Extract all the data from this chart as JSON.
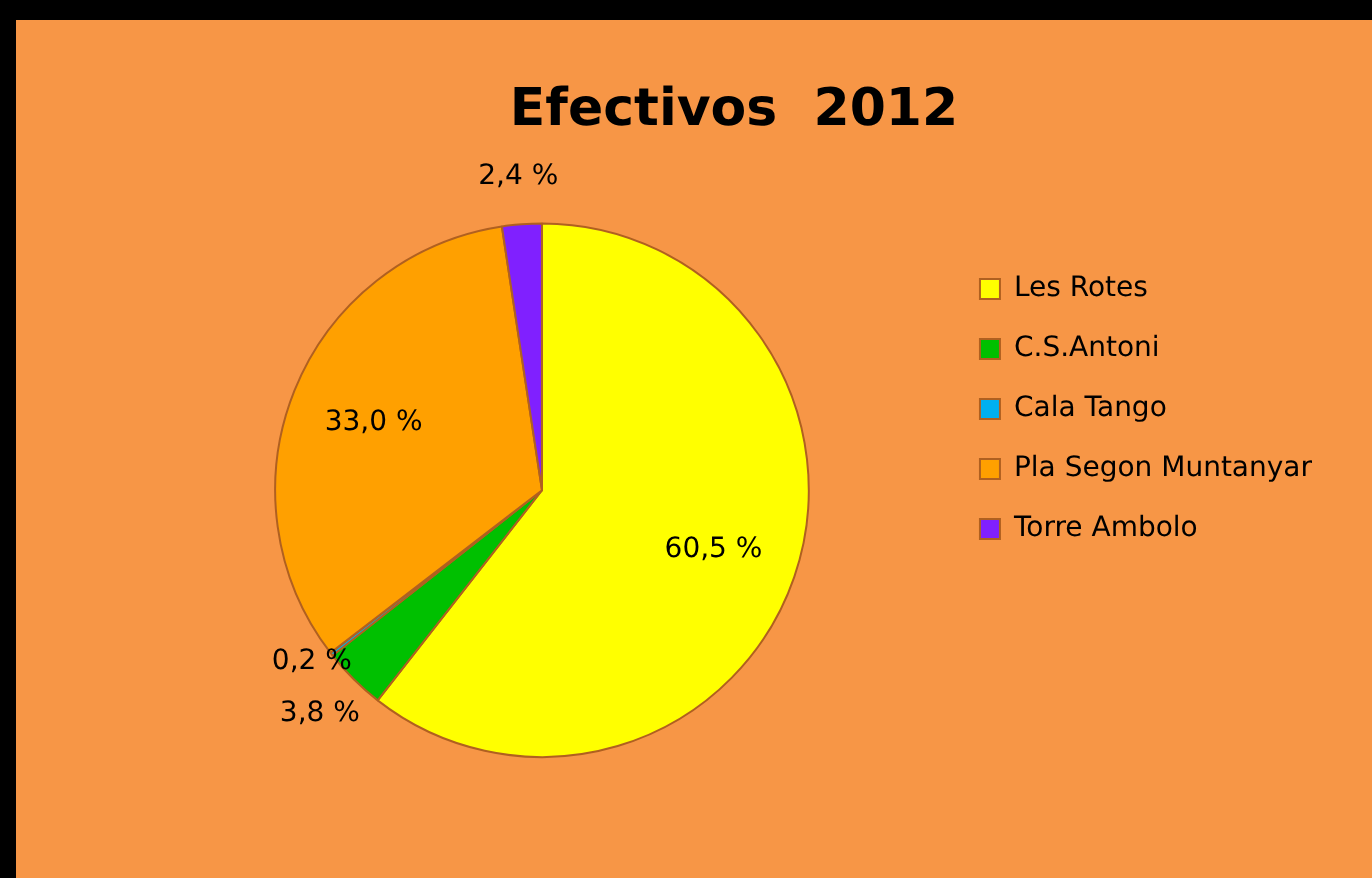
{
  "chart_data": {
    "type": "pie",
    "title": "Efectivos  2012",
    "categories": [
      "Les Rotes",
      "C.S.Antoni",
      "Cala Tango",
      "Pla Segon Muntanyar",
      "Torre Ambolo"
    ],
    "values": [
      60.5,
      3.8,
      0.2,
      33.0,
      2.4
    ],
    "colors": [
      "#ffff00",
      "#00c000",
      "#00b0f0",
      "#ffa000",
      "#8020ff"
    ],
    "value_labels": [
      "60,5 %",
      "3,8 %",
      "0,2 %",
      "33,0 %",
      "2,4 %"
    ],
    "legend": "right"
  }
}
